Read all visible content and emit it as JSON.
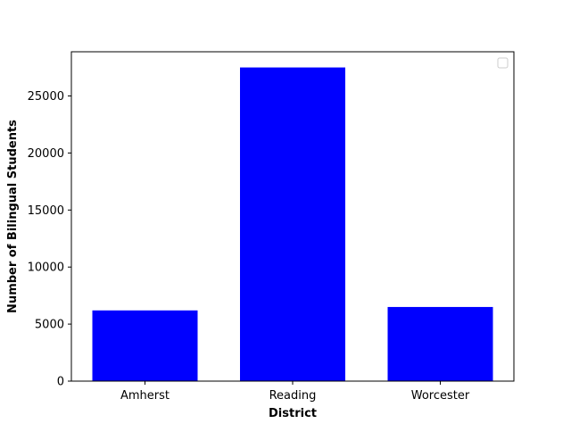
{
  "chart_data": {
    "type": "bar",
    "title": "",
    "xlabel": "District",
    "ylabel": "Number of Bilingual Students",
    "categories": [
      "Amherst",
      "Reading",
      "Worcester"
    ],
    "values": [
      6200,
      27500,
      6500
    ],
    "ylim": [
      0,
      28875
    ],
    "yticks": [
      0,
      5000,
      10000,
      15000,
      20000,
      25000
    ],
    "ytick_labels": [
      "0",
      "5000",
      "10000",
      "15000",
      "20000",
      "25000"
    ],
    "bar_color": "#0000ff",
    "grid": false,
    "legend": {
      "placement": "top-right",
      "entries": []
    }
  }
}
